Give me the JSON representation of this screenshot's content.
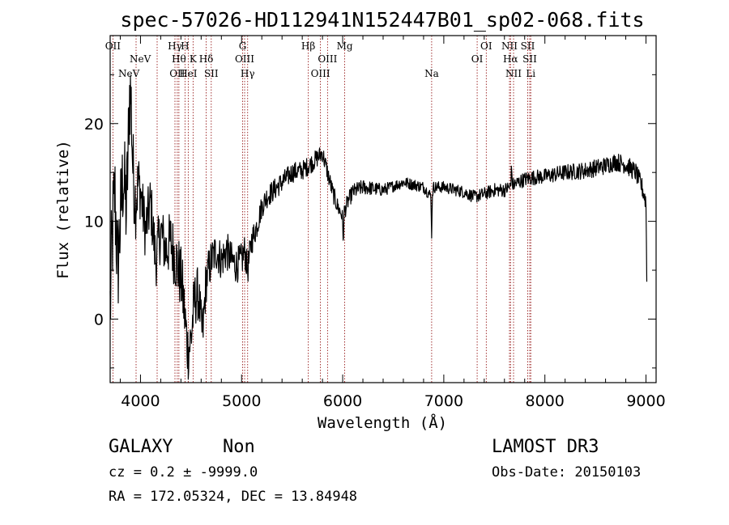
{
  "chart_data": {
    "type": "line",
    "title": "spec-57026-HD112941N152447B01_sp02-068.fits",
    "xlabel": "Wavelength (Å)",
    "ylabel": "Flux (relative)",
    "xlim": [
      3700,
      9100
    ],
    "ylim": [
      -6.5,
      29
    ],
    "x_ticks": [
      4000,
      5000,
      6000,
      7000,
      8000,
      9000
    ],
    "y_ticks": [
      0,
      10,
      20
    ],
    "series_color": "#000000",
    "line_marker_color": "#8b0000",
    "spectrum_anchors": [
      [
        3700,
        1
      ],
      [
        3720,
        8
      ],
      [
        3745,
        13
      ],
      [
        3775,
        5
      ],
      [
        3800,
        10
      ],
      [
        3830,
        15
      ],
      [
        3860,
        11
      ],
      [
        3880,
        18
      ],
      [
        3890,
        22
      ],
      [
        3920,
        16
      ],
      [
        3950,
        12
      ],
      [
        3980,
        14
      ],
      [
        4000,
        13
      ],
      [
        4050,
        9
      ],
      [
        4100,
        12
      ],
      [
        4150,
        6
      ],
      [
        4200,
        9
      ],
      [
        4250,
        7
      ],
      [
        4300,
        8
      ],
      [
        4350,
        6
      ],
      [
        4380,
        5
      ],
      [
        4420,
        3
      ],
      [
        4460,
        1
      ],
      [
        4500,
        0
      ],
      [
        4540,
        2
      ],
      [
        4580,
        3
      ],
      [
        4620,
        1
      ],
      [
        4650,
        4
      ],
      [
        4700,
        6
      ],
      [
        4750,
        7
      ],
      [
        4800,
        6
      ],
      [
        4850,
        7
      ],
      [
        4900,
        6
      ],
      [
        4950,
        5.5
      ],
      [
        5000,
        6
      ],
      [
        5030,
        7
      ],
      [
        5060,
        5
      ],
      [
        5100,
        8
      ],
      [
        5150,
        9.5
      ],
      [
        5200,
        11.5
      ],
      [
        5250,
        12.5
      ],
      [
        5300,
        13
      ],
      [
        5400,
        14
      ],
      [
        5500,
        15
      ],
      [
        5600,
        15.2
      ],
      [
        5700,
        16
      ],
      [
        5750,
        16.5
      ],
      [
        5800,
        17
      ],
      [
        5850,
        15
      ],
      [
        5900,
        13
      ],
      [
        5950,
        11.5
      ],
      [
        6000,
        10.5
      ],
      [
        6050,
        12
      ],
      [
        6100,
        13
      ],
      [
        6200,
        13.5
      ],
      [
        6400,
        13.2
      ],
      [
        6600,
        14
      ],
      [
        6800,
        13.5
      ],
      [
        6880,
        12.5
      ],
      [
        6900,
        13.5
      ],
      [
        7000,
        13.5
      ],
      [
        7200,
        13
      ],
      [
        7300,
        12.5
      ],
      [
        7400,
        12.8
      ],
      [
        7500,
        13.2
      ],
      [
        7600,
        13.2
      ],
      [
        7700,
        13.8
      ],
      [
        7800,
        14.3
      ],
      [
        7900,
        14.5
      ],
      [
        8000,
        14.6
      ],
      [
        8200,
        15
      ],
      [
        8400,
        15.2
      ],
      [
        8600,
        15.7
      ],
      [
        8700,
        16.1
      ],
      [
        8800,
        15.8
      ],
      [
        8900,
        15
      ],
      [
        8960,
        13.5
      ],
      [
        9000,
        12
      ],
      [
        9010,
        2
      ]
    ],
    "spectrum_noise": [
      [
        3700,
        6
      ],
      [
        3900,
        5
      ],
      [
        4000,
        3
      ],
      [
        4200,
        3
      ],
      [
        4400,
        3.5
      ],
      [
        4700,
        2.2
      ],
      [
        5000,
        1.8
      ],
      [
        5200,
        1.2
      ],
      [
        5600,
        1.0
      ],
      [
        6000,
        0.9
      ],
      [
        6500,
        0.6
      ],
      [
        7000,
        0.6
      ],
      [
        7500,
        0.7
      ],
      [
        8000,
        0.8
      ],
      [
        8500,
        0.9
      ],
      [
        9000,
        1.0
      ]
    ],
    "spectrum_features": [
      [
        6880,
        -4.5,
        6
      ],
      [
        7670,
        3.5,
        5
      ],
      [
        6005,
        -2.5,
        10
      ],
      [
        4470,
        -4,
        60
      ],
      [
        4605,
        -3,
        40
      ],
      [
        3905,
        4,
        20
      ]
    ],
    "emission_lines": [
      {
        "label": "NeV",
        "x": 3346,
        "row": 3
      },
      {
        "label": "NeV",
        "x": 3426,
        "row": 2
      },
      {
        "label": "OII",
        "x": 3727,
        "row": 1
      },
      {
        "label": "OII",
        "x": 4364,
        "row": 3
      },
      {
        "label": "Hγ",
        "x": 4341,
        "row": 1
      },
      {
        "label": "Hθ",
        "x": 4380,
        "row": 2
      },
      {
        "label": "H",
        "x": 4440,
        "row": 1
      },
      {
        "label": "HeI",
        "x": 4472,
        "row": 3
      },
      {
        "label": "K",
        "x": 4520,
        "row": 2
      },
      {
        "label": "Hδ",
        "x": 4650,
        "row": 2
      },
      {
        "label": "SII",
        "x": 4700,
        "row": 3
      },
      {
        "label": "G",
        "x": 5010,
        "row": 1
      },
      {
        "label": "OIII",
        "x": 5030,
        "row": 2
      },
      {
        "label": "Hγ",
        "x": 5060,
        "row": 3
      },
      {
        "label": "Hβ",
        "x": 5660,
        "row": 1
      },
      {
        "label": "OIII",
        "x": 5780,
        "row": 3
      },
      {
        "label": "OIII",
        "x": 5850,
        "row": 2
      },
      {
        "label": "Mg",
        "x": 6020,
        "row": 1
      },
      {
        "label": "Na",
        "x": 6880,
        "row": 3
      },
      {
        "label": "OI",
        "x": 7330,
        "row": 2
      },
      {
        "label": "OI",
        "x": 7420,
        "row": 1
      },
      {
        "label": "NII",
        "x": 7650,
        "row": 1
      },
      {
        "label": "Hα",
        "x": 7660,
        "row": 2
      },
      {
        "label": "NII",
        "x": 7690,
        "row": 3
      },
      {
        "label": "SII",
        "x": 7830,
        "row": 1
      },
      {
        "label": "SII",
        "x": 7850,
        "row": 2
      },
      {
        "label": "Li",
        "x": 7860,
        "row": 3
      }
    ]
  },
  "info": {
    "class_label": "GALAXY",
    "subclass_label": "Non",
    "survey_label": "LAMOST DR3",
    "cz_text": "cz = 0.2 ± -9999.0",
    "obs_date_text": "Obs-Date: 20150103",
    "coords_text": "RA = 172.05324, DEC =  13.84948"
  }
}
